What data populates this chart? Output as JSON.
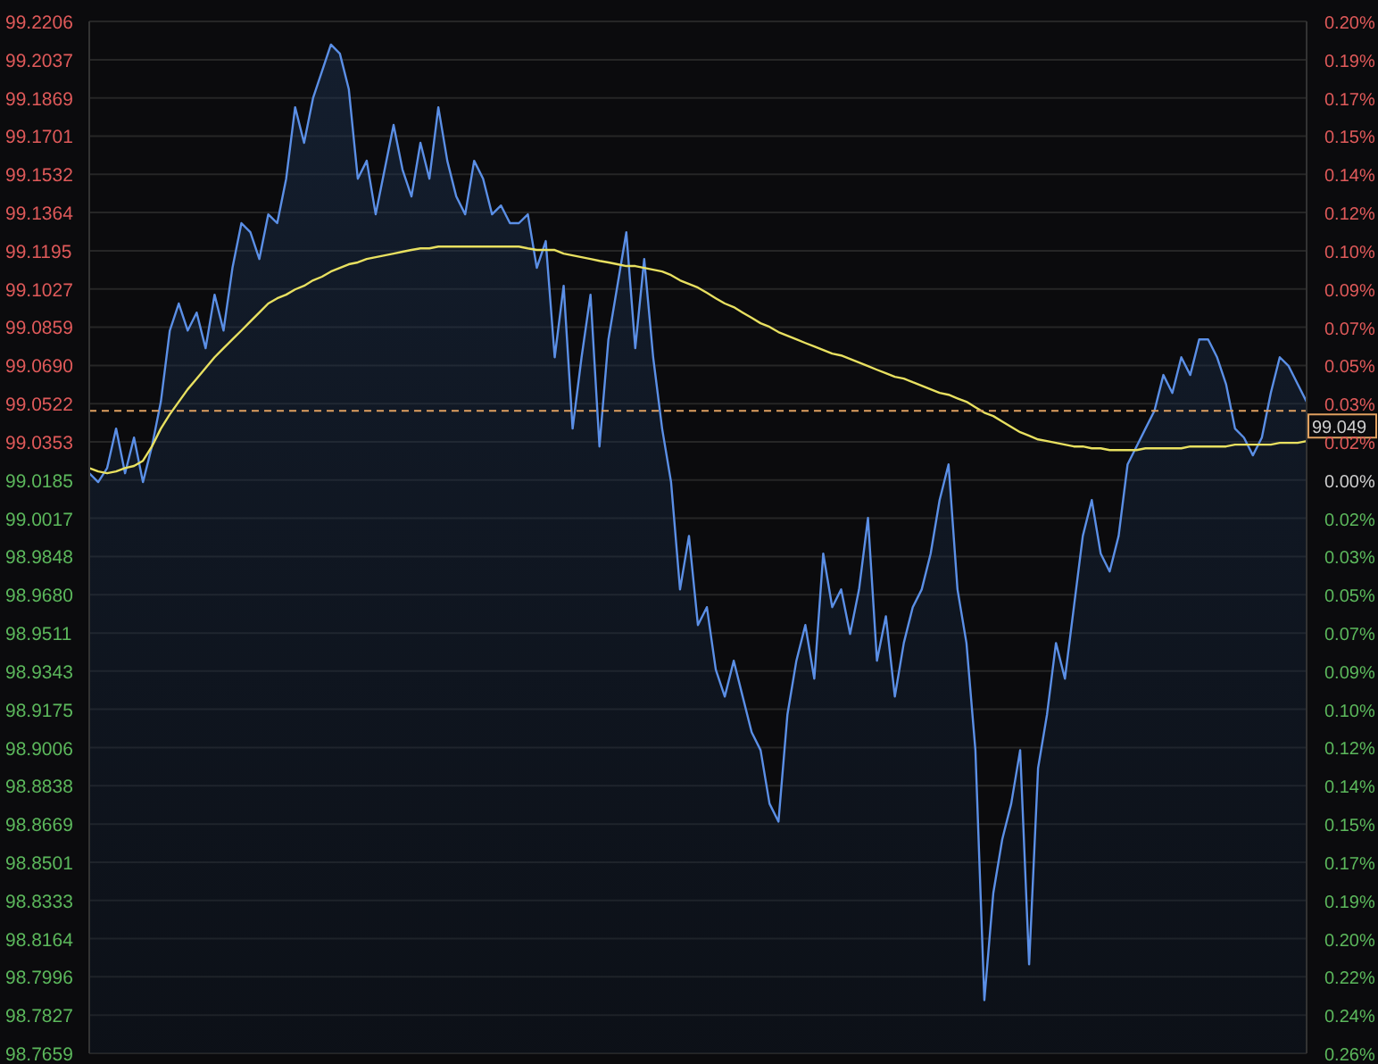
{
  "chart_data": {
    "type": "area",
    "categories": [
      null,
      null,
      null,
      null,
      null,
      null,
      null,
      null,
      null,
      null,
      null,
      null,
      null,
      null,
      null,
      null,
      null,
      null,
      null,
      null,
      null,
      null,
      null,
      null,
      null,
      null,
      null,
      null,
      null,
      null,
      null,
      null,
      null,
      null,
      null,
      null,
      null,
      null,
      null,
      null,
      null,
      null,
      null,
      null,
      null,
      null,
      null,
      null,
      null,
      null,
      null,
      null,
      null,
      null,
      null,
      null,
      null,
      null,
      null,
      null,
      null,
      null,
      null,
      null,
      null,
      null,
      null,
      null,
      null,
      null,
      null,
      null,
      null,
      null,
      null,
      null,
      null,
      null,
      null,
      null,
      null,
      null,
      null,
      null,
      null,
      null,
      null,
      null,
      null,
      null,
      null,
      null,
      null,
      null,
      null,
      null,
      null,
      null,
      null,
      null,
      null,
      null,
      null,
      null,
      null,
      null,
      null,
      null,
      null,
      null,
      null,
      null,
      null,
      null,
      null,
      null,
      null,
      null,
      null,
      null,
      null,
      null,
      null,
      null,
      null,
      null,
      null,
      null,
      null,
      null,
      null,
      null,
      null,
      null,
      null,
      null,
      null
    ],
    "series": [
      {
        "color": "#5b8fe6",
        "values": [
          99.0215,
          99.0176,
          99.0238,
          99.0412,
          99.0215,
          99.0372,
          99.0176,
          99.0333,
          99.053,
          99.0844,
          99.0963,
          99.0844,
          99.0923,
          99.0766,
          99.1002,
          99.0844,
          99.112,
          99.1317,
          99.1277,
          99.1159,
          99.1356,
          99.1317,
          99.1513,
          99.1828,
          99.1671,
          99.1868,
          99.1986,
          99.2104,
          99.2064,
          99.1907,
          99.1513,
          99.1592,
          99.1356,
          99.1553,
          99.175,
          99.1553,
          99.1435,
          99.1671,
          99.1513,
          99.1828,
          99.1592,
          99.1435,
          99.1356,
          99.1592,
          99.1513,
          99.1356,
          99.1395,
          99.1317,
          99.1317,
          99.1356,
          99.112,
          99.1238,
          99.0726,
          99.1041,
          99.0412,
          99.0726,
          99.1002,
          99.0333,
          99.0805,
          99.1041,
          99.1277,
          99.0766,
          99.1159,
          99.0726,
          99.0412,
          99.0176,
          98.9703,
          98.9939,
          98.9546,
          98.9625,
          98.9349,
          98.9231,
          98.9389,
          98.9231,
          98.9074,
          98.8995,
          98.8759,
          98.868,
          98.9152,
          98.9389,
          98.9546,
          98.931,
          98.9861,
          98.9625,
          98.9703,
          98.9507,
          98.9703,
          99.0018,
          98.9389,
          98.9585,
          98.9231,
          98.9467,
          98.9625,
          98.9703,
          98.9861,
          99.0097,
          99.0254,
          98.9703,
          98.9467,
          98.8995,
          98.7893,
          98.8365,
          98.8602,
          98.8759,
          98.8995,
          98.8051,
          98.8916,
          98.9152,
          98.9467,
          98.931,
          98.9625,
          98.9939,
          99.0097,
          98.9861,
          98.9782,
          98.9939,
          99.0254,
          99.0333,
          99.0412,
          99.049,
          99.0648,
          99.0569,
          99.0726,
          99.0648,
          99.0805,
          99.0805,
          99.0726,
          99.0608,
          99.0412,
          99.0372,
          99.0294,
          99.0372,
          99.0569,
          99.0726,
          99.0687,
          99.0608,
          99.053
        ]
      },
      {
        "type": "line",
        "color": "#e8e060",
        "values": [
          99.0238,
          99.0223,
          99.0215,
          99.0223,
          99.0238,
          99.0247,
          99.027,
          99.0333,
          99.0412,
          99.0475,
          99.053,
          99.0585,
          99.0632,
          99.0679,
          99.0726,
          99.0766,
          99.0805,
          99.0844,
          99.0884,
          99.0923,
          99.0963,
          99.0986,
          99.1002,
          99.1025,
          99.1041,
          99.1065,
          99.1081,
          99.1104,
          99.112,
          99.1136,
          99.1144,
          99.1159,
          99.1167,
          99.1175,
          99.1183,
          99.1191,
          99.1199,
          99.1206,
          99.1206,
          99.1214,
          99.1214,
          99.1214,
          99.1214,
          99.1214,
          99.1214,
          99.1214,
          99.1214,
          99.1214,
          99.1214,
          99.1206,
          99.1199,
          99.1199,
          99.1199,
          99.1183,
          99.1175,
          99.1167,
          99.1159,
          99.1151,
          99.1144,
          99.1136,
          99.1128,
          99.1128,
          99.112,
          99.1112,
          99.1104,
          99.1088,
          99.1065,
          99.1049,
          99.1033,
          99.101,
          99.0986,
          99.0963,
          99.0947,
          99.0923,
          99.09,
          99.0876,
          99.086,
          99.0837,
          99.0821,
          99.0805,
          99.0789,
          99.0774,
          99.0758,
          99.0742,
          99.0734,
          99.0719,
          99.0703,
          99.0687,
          99.0671,
          99.0656,
          99.064,
          99.0632,
          99.0616,
          99.0601,
          99.0585,
          99.0569,
          99.0561,
          99.0545,
          99.053,
          99.0506,
          99.0482,
          99.0467,
          99.0443,
          99.0419,
          99.0396,
          99.038,
          99.0364,
          99.0357,
          99.0349,
          99.0341,
          99.0333,
          99.0333,
          99.0325,
          99.0325,
          99.0317,
          99.0317,
          99.0317,
          99.0317,
          99.0325,
          99.0325,
          99.0325,
          99.0325,
          99.0325,
          99.0333,
          99.0333,
          99.0333,
          99.0333,
          99.0333,
          99.0341,
          99.0341,
          99.0341,
          99.0341,
          99.0341,
          99.0349,
          99.0349,
          99.0349,
          99.0357
        ]
      }
    ],
    "ylim": [
      98.7659,
      99.2206
    ],
    "yticks": [
      99.2206,
      99.2037,
      99.1869,
      99.1701,
      99.1532,
      99.1364,
      99.1195,
      99.1027,
      99.0859,
      {
        "value": 99.069,
        "label": "99.0690"
      },
      99.0522,
      99.0353,
      99.0185,
      99.0017,
      98.9848,
      {
        "value": 98.968,
        "label": "98.9680"
      },
      98.9511,
      98.9343,
      98.9175,
      98.9006,
      98.8838,
      98.8669,
      98.8501,
      98.8333,
      98.8164,
      98.7996,
      98.7827,
      98.7659
    ],
    "y2lim": [
      -0.255,
      0.204
    ],
    "y2ticks": [
      {
        "value": 0.204,
        "label": "0.20%"
      },
      {
        "value": 0.187,
        "label": "0.19%"
      },
      {
        "value": 0.17,
        "label": "0.17%"
      },
      {
        "value": 0.153,
        "label": "0.15%"
      },
      {
        "value": 0.136,
        "label": "0.14%"
      },
      {
        "value": 0.119,
        "label": "0.12%"
      },
      {
        "value": 0.102,
        "label": "0.10%"
      },
      {
        "value": 0.085,
        "label": "0.09%"
      },
      {
        "value": 0.068,
        "label": "0.07%"
      },
      {
        "value": 0.051,
        "label": "0.05%"
      },
      {
        "value": 0.034,
        "label": "0.03%"
      },
      {
        "value": 0.017,
        "label": "0.02%"
      },
      {
        "value": 0,
        "label": "0.00%"
      },
      {
        "value": -0.017,
        "label": "0.02%"
      },
      {
        "value": -0.034,
        "label": "0.03%"
      },
      {
        "value": -0.051,
        "label": "0.05%"
      },
      {
        "value": -0.068,
        "label": "0.07%"
      },
      {
        "value": -0.085,
        "label": "0.09%"
      },
      {
        "value": -0.102,
        "label": "0.10%"
      },
      {
        "value": -0.119,
        "label": "0.12%"
      },
      {
        "value": -0.136,
        "label": "0.14%"
      },
      {
        "value": -0.153,
        "label": "0.15%"
      },
      {
        "value": -0.17,
        "label": "0.17%"
      },
      {
        "value": -0.187,
        "label": "0.19%"
      },
      {
        "value": -0.204,
        "label": "0.20%"
      },
      {
        "value": -0.221,
        "label": "0.22%"
      },
      {
        "value": -0.238,
        "label": "0.24%"
      },
      {
        "value": -0.255,
        "label": "0.26%"
      }
    ],
    "tick_labels": "y",
    "ref_lines": [
      {
        "axis": "y",
        "value": 99.049,
        "label": "99.049",
        "color": "#e0a060",
        "line_style": "dashed"
      }
    ],
    "grid": "y",
    "legend": false,
    "marker": "none"
  }
}
